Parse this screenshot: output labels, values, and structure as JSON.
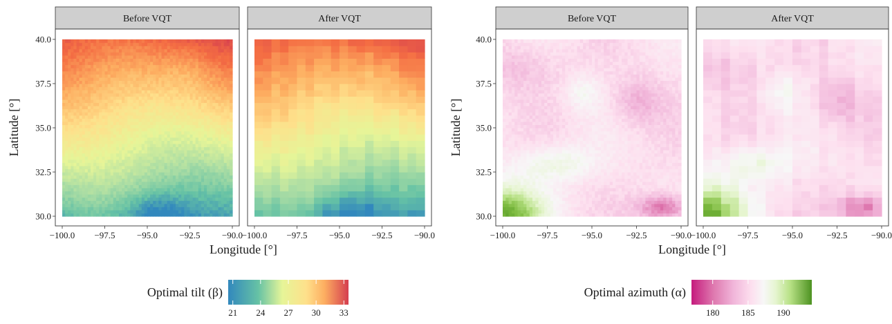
{
  "chart_data": [
    {
      "type": "heatmap",
      "facets": [
        "Before VQT",
        "After VQT"
      ],
      "xlabel": "Longitude  [°]",
      "ylabel": "Latitude [°]",
      "xlim": [
        -100.0,
        -90.0
      ],
      "ylim": [
        30.0,
        40.0
      ],
      "xticks": [
        -100.0,
        -97.5,
        -95.0,
        -92.5,
        -90.0
      ],
      "xtick_labels": [
        "−100.0",
        "−97.5",
        "−95.0",
        "−92.5",
        "−90.0"
      ],
      "yticks": [
        30.0,
        32.5,
        35.0,
        37.5,
        40.0
      ],
      "ytick_labels": [
        "30.0",
        "32.5",
        "35.0",
        "37.5",
        "40.0"
      ],
      "grid": false,
      "legend": {
        "title": "Optimal tilt (β)",
        "position": "bottom",
        "range": [
          20.5,
          33.5
        ],
        "ticks": [
          21,
          24,
          27,
          30,
          33
        ],
        "tick_labels": [
          "21",
          "24",
          "27",
          "30",
          "33"
        ],
        "colors": [
          "#3288bd",
          "#66c2a5",
          "#abdda4",
          "#e6f598",
          "#fee08b",
          "#fdae61",
          "#f46d43",
          "#d53e4f"
        ]
      }
    },
    {
      "type": "heatmap",
      "facets": [
        "Before VQT",
        "After VQT"
      ],
      "xlabel": "Longitude  [°]",
      "ylabel": "Latitude [°]",
      "xlim": [
        -100.0,
        -90.0
      ],
      "ylim": [
        30.0,
        40.0
      ],
      "xticks": [
        -100.0,
        -97.5,
        -95.0,
        -92.5,
        -90.0
      ],
      "xtick_labels": [
        "−100.0",
        "−97.5",
        "−95.0",
        "−92.5",
        "−90.0"
      ],
      "yticks": [
        30.0,
        32.5,
        35.0,
        37.5,
        40.0
      ],
      "ytick_labels": [
        "30.0",
        "32.5",
        "35.0",
        "37.5",
        "40.0"
      ],
      "grid": false,
      "legend": {
        "title": "Optimal azimuth (α)",
        "position": "bottom",
        "range": [
          177,
          194
        ],
        "ticks": [
          180,
          185,
          190
        ],
        "tick_labels": [
          "180",
          "185",
          "190"
        ],
        "colors": [
          "#c51b7d",
          "#de77ae",
          "#f1b6da",
          "#fde0ef",
          "#f7f7f7",
          "#e6f5d0",
          "#b8e186",
          "#7fbc41",
          "#4d9221"
        ]
      }
    }
  ]
}
